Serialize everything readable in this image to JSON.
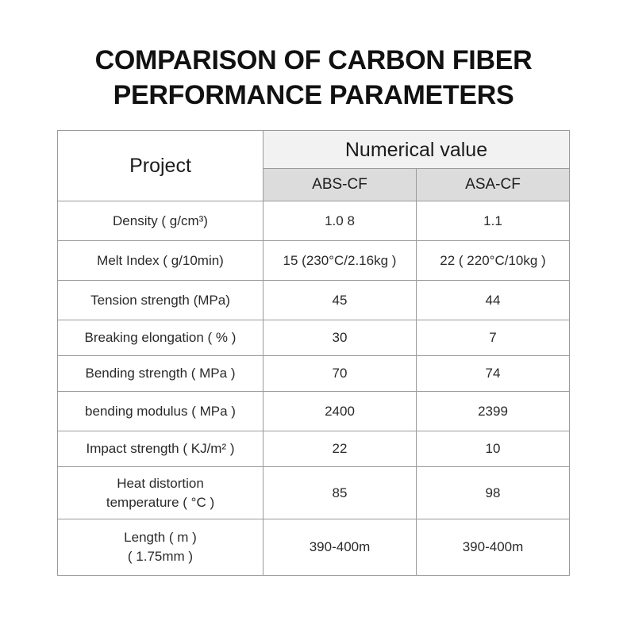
{
  "title": {
    "line1": "COMPARISON OF CARBON FIBER",
    "line2": "PERFORMANCE PARAMETERS"
  },
  "table": {
    "header": {
      "project": "Project",
      "numerical_value": "Numerical value",
      "col1": "ABS-CF",
      "col2": "ASA-CF"
    },
    "rows": [
      {
        "label": "Density ( g/cm³)",
        "abs": "1.0 8",
        "asa": "1.1"
      },
      {
        "label": "Melt Index ( g/10min)",
        "abs": "15 (230°C/2.16kg )",
        "asa": "22 ( 220°C/10kg )"
      },
      {
        "label": "Tension strength (MPa)",
        "abs": "45",
        "asa": "44"
      },
      {
        "label": "Breaking elongation ( % )",
        "abs": "30",
        "asa": "7"
      },
      {
        "label": "Bending strength ( MPa )",
        "abs": "70",
        "asa": "74"
      },
      {
        "label": "bending modulus ( MPa )",
        "abs": "2400",
        "asa": "2399"
      },
      {
        "label": "Impact strength ( KJ/m² )",
        "abs": "22",
        "asa": "10"
      },
      {
        "label_line1": "Heat distortion",
        "label_line2": "temperature ( °C )",
        "abs": "85",
        "asa": "98"
      },
      {
        "label_line1": "Length ( m )",
        "label_line2": "( 1.75mm )",
        "abs": "390-400m",
        "asa": "390-400m"
      }
    ]
  }
}
